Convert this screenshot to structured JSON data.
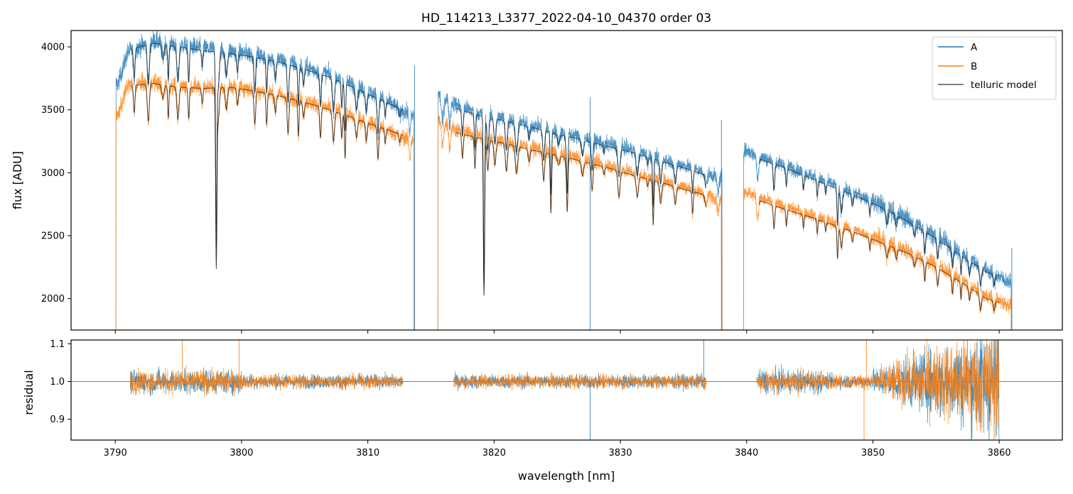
{
  "chart_data": [
    {
      "type": "line",
      "title": "HD_114213_L3377_2022-04-10_04370  order 03",
      "xlabel": "",
      "ylabel": "flux [ADU]",
      "xlim": [
        3786.5,
        3865
      ],
      "ylim": [
        1750,
        4130
      ],
      "y_ticks": [
        2000,
        2500,
        3000,
        3500,
        4000
      ],
      "legend": {
        "placement": "upper right",
        "entries": [
          "A",
          "B",
          "telluric model"
        ]
      },
      "segments": [
        [
          3790.0,
          3813.7
        ],
        [
          3815.5,
          3838.1
        ],
        [
          3839.7,
          3861.0
        ]
      ],
      "series": [
        {
          "name": "A",
          "color": "#1f77b4",
          "x": [
            3790.2,
            3791,
            3793,
            3795,
            3797,
            3799,
            3801,
            3803,
            3805,
            3807,
            3809,
            3811,
            3813.5,
            3815.6,
            3817,
            3819,
            3821,
            3823,
            3825,
            3827,
            3829,
            3831,
            3833,
            3835,
            3837.9,
            3839.9,
            3841,
            3843,
            3845,
            3847,
            3849,
            3851,
            3853,
            3855,
            3857,
            3859,
            3860.8
          ],
          "y": [
            3700,
            3960,
            4050,
            4020,
            3990,
            3970,
            3940,
            3900,
            3840,
            3780,
            3690,
            3600,
            3450,
            3620,
            3540,
            3470,
            3430,
            3380,
            3330,
            3280,
            3230,
            3180,
            3120,
            3060,
            2960,
            3180,
            3130,
            3060,
            2980,
            2900,
            2820,
            2730,
            2620,
            2500,
            2360,
            2230,
            2130
          ]
        },
        {
          "name": "B",
          "color": "#ff7f0e",
          "x": [
            3790.2,
            3791,
            3793,
            3795,
            3797,
            3799,
            3801,
            3803,
            3805,
            3807,
            3809,
            3811,
            3813.5,
            3815.6,
            3817,
            3819,
            3821,
            3823,
            3825,
            3827,
            3829,
            3831,
            3833,
            3835,
            3837.9,
            3839.9,
            3841,
            3843,
            3845,
            3847,
            3849,
            3851,
            3853,
            3855,
            3857,
            3859,
            3860.8
          ],
          "y": [
            3450,
            3700,
            3720,
            3690,
            3680,
            3690,
            3660,
            3620,
            3570,
            3510,
            3440,
            3370,
            3250,
            3420,
            3340,
            3290,
            3250,
            3200,
            3160,
            3110,
            3060,
            3000,
            2950,
            2890,
            2790,
            2850,
            2800,
            2730,
            2670,
            2600,
            2530,
            2450,
            2370,
            2270,
            2150,
            2020,
            1950
          ]
        },
        {
          "name": "telluric model",
          "color": "#000000",
          "x": [
            3791.2,
            3793,
            3795,
            3797,
            3799,
            3801,
            3803,
            3805,
            3807,
            3809,
            3811,
            3812.8,
            3817,
            3819,
            3821,
            3823,
            3825,
            3827,
            3829,
            3831,
            3833,
            3835,
            3836.8,
            3841,
            3843,
            3845,
            3847,
            3849,
            3851,
            3853,
            3855,
            3857,
            3859,
            3860
          ],
          "y_A": [
            3980,
            4030,
            4000,
            3970,
            3950,
            3920,
            3880,
            3820,
            3760,
            3670,
            3580,
            3500,
            3510,
            3450,
            3410,
            3360,
            3310,
            3260,
            3210,
            3160,
            3100,
            3040,
            2980,
            3110,
            3040,
            2960,
            2880,
            2800,
            2710,
            2600,
            2480,
            2340,
            2210,
            2180
          ],
          "y_B": [
            3690,
            3710,
            3680,
            3670,
            3680,
            3650,
            3610,
            3560,
            3500,
            3430,
            3360,
            3300,
            3320,
            3270,
            3230,
            3180,
            3140,
            3090,
            3040,
            2980,
            2930,
            2870,
            2820,
            2780,
            2710,
            2650,
            2580,
            2510,
            2430,
            2350,
            2250,
            2130,
            2000,
            1970
          ]
        }
      ]
    },
    {
      "type": "line",
      "title": "",
      "xlabel": "wavelength [nm]",
      "ylabel": "residual",
      "xlim": [
        3786.5,
        3865
      ],
      "ylim": [
        0.845,
        1.11
      ],
      "x_ticks": [
        3790,
        3800,
        3810,
        3820,
        3830,
        3840,
        3850,
        3860
      ],
      "y_ticks": [
        0.9,
        1.0,
        1.1
      ],
      "reference_line": 1.0,
      "segments": [
        [
          3791.2,
          3812.8
        ],
        [
          3816.8,
          3836.8
        ],
        [
          3840.8,
          3860.0
        ]
      ],
      "series": [
        {
          "name": "A",
          "color": "#1f77b4"
        },
        {
          "name": "B",
          "color": "#ff7f0e"
        }
      ]
    }
  ]
}
